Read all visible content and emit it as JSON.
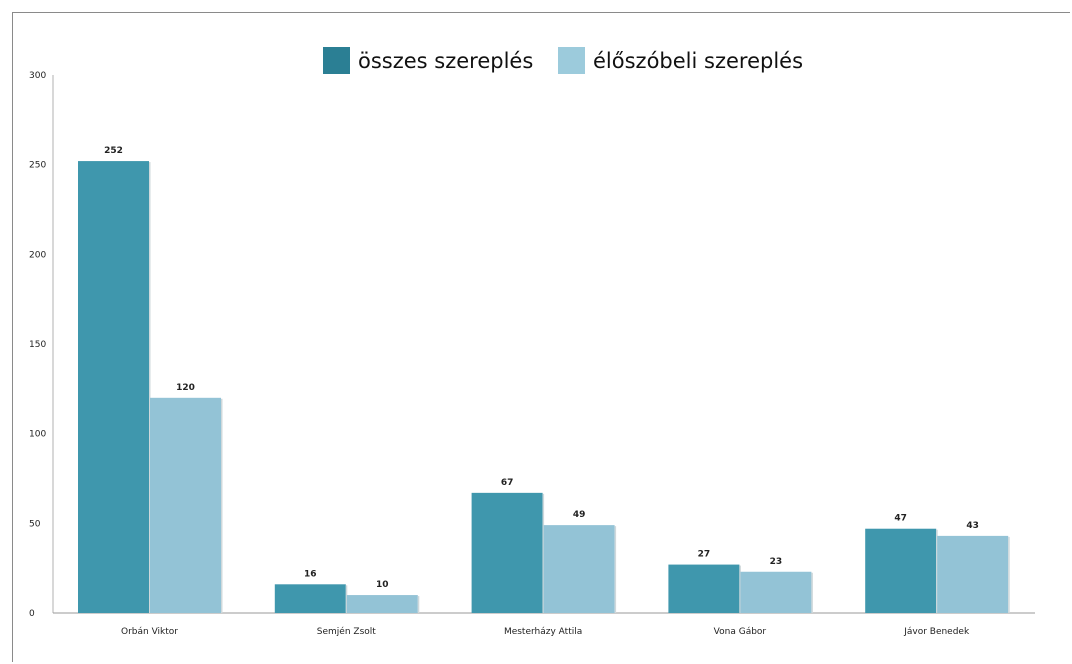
{
  "chart_data": {
    "type": "bar",
    "categories": [
      "Orbán Viktor",
      "Semjén Zsolt",
      "Mesterházy Attila",
      "Vona Gábor",
      "Jávor Benedek"
    ],
    "series": [
      {
        "name": "összes szereplés",
        "values": [
          252,
          16,
          67,
          27,
          47
        ],
        "color": "#3f97ad"
      },
      {
        "name": "élőszóbeli szereplés",
        "values": [
          120,
          10,
          49,
          23,
          43
        ],
        "color": "#93c3d6"
      }
    ],
    "legend_swatch_colors": [
      "#2b7f94",
      "#9ccbdc"
    ],
    "yticks": [
      "0",
      "50",
      "100",
      "150",
      "200",
      "250",
      "300"
    ],
    "ylim": [
      0,
      300
    ],
    "title": "",
    "xlabel": "",
    "ylabel": "",
    "grid": false,
    "legend_position": "top-center",
    "data_labels": true
  }
}
